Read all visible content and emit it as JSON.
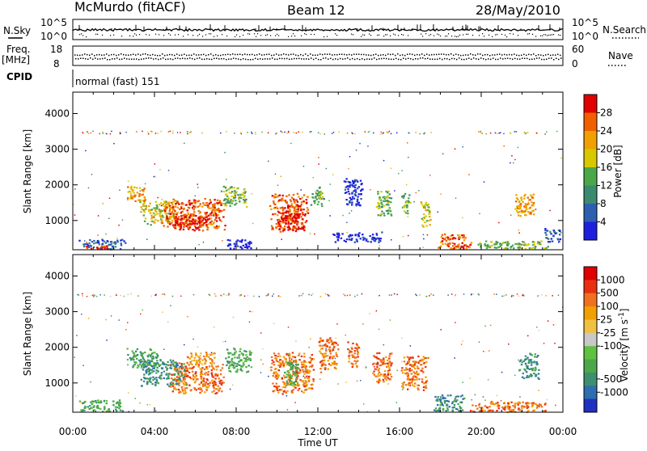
{
  "header": {
    "site": "McMurdo (fitACF)",
    "beam": "Beam 12",
    "date": "28/May/2010"
  },
  "panels": {
    "nsky_label": "N.Sky",
    "nsearch_label": "N.Search",
    "nsky_ticks": [
      "10^5",
      "10^0"
    ],
    "nsearch_ticks": [
      "10^5",
      "10^0"
    ],
    "freq_label": "Freq.",
    "freq_unit": "[MHz]",
    "freq_ticks": [
      "18",
      "8"
    ],
    "nave_label": "Nave",
    "nave_ticks": [
      "60",
      "0"
    ],
    "cpid_label": "CPID",
    "cpid_value": "normal (fast) 151"
  },
  "chart_data": [
    {
      "type": "heatmap",
      "title": "Power",
      "ylabel": "Slant Range [km]",
      "xlabel": "Time UT",
      "x_ticks": [
        "00:00",
        "04:00",
        "08:00",
        "12:00",
        "16:00",
        "20:00",
        "00:00"
      ],
      "x_range_hours": [
        0,
        24
      ],
      "y_ticks": [
        "1000",
        "2000",
        "3000",
        "4000"
      ],
      "y_tick_values": [
        1000,
        2000,
        3000,
        4000
      ],
      "ylim": [
        180,
        4600
      ],
      "colorbar": {
        "label": "Power [dB]",
        "tick_labels": [
          "4",
          "8",
          "12",
          "16",
          "20",
          "24",
          "28"
        ],
        "colors": [
          "#1f1fe0",
          "#2d5fb0",
          "#3c8a6e",
          "#4aa84a",
          "#d8c800",
          "#f0a000",
          "#f06000",
          "#e00000"
        ]
      },
      "regions": [
        {
          "t0": 0.2,
          "t1": 2.6,
          "r0": 200,
          "r1": 500,
          "level": 1
        },
        {
          "t0": 0.4,
          "t1": 1.8,
          "r0": 200,
          "r1": 320,
          "level": 7
        },
        {
          "t0": 2.6,
          "t1": 3.6,
          "r0": 1500,
          "r1": 2000,
          "level": 5
        },
        {
          "t0": 3.2,
          "t1": 5.2,
          "r0": 900,
          "r1": 1600,
          "level": 4
        },
        {
          "t0": 4.3,
          "t1": 7.5,
          "r0": 750,
          "r1": 1650,
          "level": 6
        },
        {
          "t0": 4.8,
          "t1": 6.8,
          "r0": 700,
          "r1": 1200,
          "level": 7
        },
        {
          "t0": 7.2,
          "t1": 8.6,
          "r0": 1400,
          "r1": 2000,
          "level": 3
        },
        {
          "t0": 7.5,
          "t1": 8.8,
          "r0": 200,
          "r1": 500,
          "level": 0
        },
        {
          "t0": 9.6,
          "t1": 11.6,
          "r0": 700,
          "r1": 1800,
          "level": 6
        },
        {
          "t0": 10.0,
          "t1": 11.4,
          "r0": 700,
          "r1": 1300,
          "level": 7
        },
        {
          "t0": 11.6,
          "t1": 12.3,
          "r0": 1400,
          "r1": 2000,
          "level": 3
        },
        {
          "t0": 12.6,
          "t1": 15.3,
          "r0": 400,
          "r1": 700,
          "level": 0
        },
        {
          "t0": 13.2,
          "t1": 14.2,
          "r0": 1400,
          "r1": 2200,
          "level": 0
        },
        {
          "t0": 14.8,
          "t1": 15.6,
          "r0": 1100,
          "r1": 1900,
          "level": 3
        },
        {
          "t0": 16.0,
          "t1": 16.5,
          "r0": 1200,
          "r1": 1800,
          "level": 3
        },
        {
          "t0": 17.0,
          "t1": 17.5,
          "r0": 800,
          "r1": 1600,
          "level": 4
        },
        {
          "t0": 17.8,
          "t1": 19.6,
          "r0": 200,
          "r1": 650,
          "level": 6
        },
        {
          "t0": 19.6,
          "t1": 23.4,
          "r0": 200,
          "r1": 450,
          "level": 3
        },
        {
          "t0": 21.6,
          "t1": 22.6,
          "r0": 1100,
          "r1": 1800,
          "level": 5
        },
        {
          "t0": 23.0,
          "t1": 23.9,
          "r0": 400,
          "r1": 800,
          "level": 1
        }
      ]
    },
    {
      "type": "heatmap",
      "title": "Velocity",
      "ylabel": "Slant Range [km]",
      "xlabel": "Time UT",
      "x_ticks": [
        "00:00",
        "04:00",
        "08:00",
        "12:00",
        "16:00",
        "20:00",
        "00:00"
      ],
      "x_range_hours": [
        0,
        24
      ],
      "y_ticks": [
        "1000",
        "2000",
        "3000",
        "4000"
      ],
      "y_tick_values": [
        1000,
        2000,
        3000,
        4000
      ],
      "ylim": [
        180,
        4600
      ],
      "colorbar": {
        "label": "Velocity [m s^-1]",
        "tick_labels": [
          "1000",
          "500",
          "100",
          "25",
          "-25",
          "-100",
          "-500",
          "-1000"
        ],
        "colors": [
          "#2030c0",
          "#2e6db0",
          "#3d8f70",
          "#4aa84a",
          "#60c040",
          "#c8c8c8",
          "#f0c040",
          "#f0a000",
          "#f07020",
          "#e83010",
          "#e00000"
        ]
      },
      "regions": [
        {
          "t0": 0.2,
          "t1": 2.6,
          "r0": 200,
          "r1": 550,
          "level": 3
        },
        {
          "t0": 2.6,
          "t1": 4.2,
          "r0": 1400,
          "r1": 2000,
          "level": 3
        },
        {
          "t0": 3.2,
          "t1": 5.6,
          "r0": 900,
          "r1": 1700,
          "level": 2
        },
        {
          "t0": 4.6,
          "t1": 7.4,
          "r0": 700,
          "r1": 1600,
          "level": 8
        },
        {
          "t0": 5.5,
          "t1": 7.0,
          "r0": 1500,
          "r1": 1900,
          "level": 7
        },
        {
          "t0": 7.4,
          "t1": 8.8,
          "r0": 1300,
          "r1": 2000,
          "level": 3
        },
        {
          "t0": 9.6,
          "t1": 11.8,
          "r0": 700,
          "r1": 1900,
          "level": 8
        },
        {
          "t0": 10.3,
          "t1": 11.0,
          "r0": 900,
          "r1": 1700,
          "level": 3
        },
        {
          "t0": 12.0,
          "t1": 13.0,
          "r0": 1300,
          "r1": 2300,
          "level": 8
        },
        {
          "t0": 13.4,
          "t1": 14.0,
          "r0": 1400,
          "r1": 2200,
          "level": 8
        },
        {
          "t0": 14.6,
          "t1": 15.6,
          "r0": 1000,
          "r1": 1900,
          "level": 8
        },
        {
          "t0": 16.0,
          "t1": 17.4,
          "r0": 800,
          "r1": 1800,
          "level": 8
        },
        {
          "t0": 17.6,
          "t1": 19.2,
          "r0": 200,
          "r1": 700,
          "level": 2
        },
        {
          "t0": 19.2,
          "t1": 23.4,
          "r0": 200,
          "r1": 500,
          "level": 8
        },
        {
          "t0": 21.8,
          "t1": 22.8,
          "r0": 1100,
          "r1": 1900,
          "level": 2
        }
      ]
    }
  ]
}
